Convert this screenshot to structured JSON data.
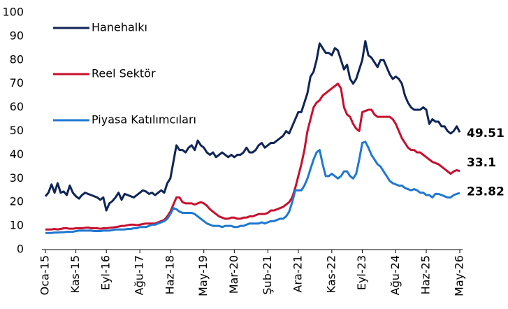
{
  "chart_data": {
    "type": "line",
    "categories": [
      "Oca-15",
      null,
      null,
      null,
      null,
      null,
      null,
      null,
      null,
      null,
      "Kas-15",
      null,
      null,
      null,
      null,
      null,
      null,
      null,
      null,
      null,
      "Eyl-16",
      null,
      null,
      null,
      null,
      null,
      null,
      null,
      null,
      null,
      null,
      "Ağu-17",
      null,
      null,
      null,
      null,
      null,
      null,
      null,
      null,
      null,
      "Haz-18",
      null,
      null,
      null,
      null,
      null,
      null,
      null,
      null,
      null,
      null,
      "May-19",
      null,
      null,
      null,
      null,
      null,
      null,
      null,
      null,
      null,
      "Mar-20",
      null,
      null,
      null,
      null,
      null,
      null,
      null,
      null,
      null,
      null,
      "Şub-21",
      null,
      null,
      null,
      null,
      null,
      null,
      null,
      null,
      null,
      "Ara-21",
      null,
      null,
      null,
      null,
      null,
      null,
      null,
      null,
      null,
      null,
      "Kas-22",
      null,
      null,
      null,
      null,
      null,
      null,
      null,
      null,
      null,
      "Eyl-23",
      null,
      null,
      null,
      null,
      null,
      null,
      null,
      null,
      null,
      null,
      "Ağu-24",
      null,
      null,
      null,
      null,
      null,
      null,
      null,
      null,
      null,
      "Haz-25",
      null,
      null,
      null,
      null,
      null,
      null,
      null,
      null,
      null,
      null,
      "May-26"
    ],
    "series": [
      {
        "name": "Hanehalkı",
        "color": "#0f2557",
        "values": [
          22.5,
          24,
          27.5,
          24,
          28,
          24,
          24.5,
          23,
          27,
          24,
          22.5,
          21.5,
          23,
          24,
          23.5,
          23,
          22.5,
          22,
          21,
          22,
          16.5,
          19.5,
          20.5,
          22,
          24,
          21,
          23.5,
          23,
          22.5,
          22,
          23,
          24,
          25,
          24.5,
          23.5,
          24,
          23,
          24,
          25,
          24,
          28,
          30,
          37,
          44,
          42,
          42,
          41,
          43,
          44,
          42,
          46,
          44,
          43,
          41,
          40,
          41,
          39,
          40,
          41,
          40,
          39,
          40,
          39,
          40,
          40,
          41,
          43,
          41,
          41,
          42,
          44,
          45,
          43,
          44,
          45,
          45,
          46,
          47,
          48,
          50,
          49,
          52,
          55,
          58,
          58,
          62,
          66,
          73,
          75,
          80,
          87,
          85,
          83,
          83,
          82,
          85,
          84,
          80,
          76,
          78,
          72,
          70,
          72,
          76,
          80,
          88,
          82,
          81,
          79,
          77,
          80,
          80,
          77,
          74,
          72,
          73,
          72,
          70,
          65,
          62,
          60,
          59,
          59,
          59,
          60,
          59,
          53,
          55,
          54,
          54,
          52,
          52,
          50,
          49,
          50,
          52,
          49.51
        ]
      },
      {
        "name": "Reel Sektör",
        "color": "#c8102e",
        "values": [
          8.5,
          8.5,
          8.5,
          8.7,
          8.5,
          8.7,
          9,
          9,
          8.8,
          8.8,
          9,
          9,
          9,
          9.2,
          9.3,
          9,
          9,
          9,
          8.8,
          9,
          9,
          9.2,
          9.3,
          9.5,
          9.7,
          10,
          10,
          10.3,
          10.5,
          10.5,
          10.3,
          10.5,
          10.8,
          11,
          11,
          11,
          11,
          11.5,
          12,
          12.5,
          14,
          16,
          19,
          22,
          22,
          20,
          19.5,
          19.5,
          19.5,
          19,
          19.5,
          20,
          19.5,
          18.5,
          17,
          16,
          15,
          14,
          13.5,
          13,
          13,
          13.5,
          13.5,
          13,
          13,
          13.5,
          13.5,
          14,
          14,
          14.5,
          15,
          15,
          15,
          15.5,
          16.5,
          16.5,
          17,
          17.5,
          18,
          19,
          20,
          22,
          26,
          31,
          36,
          42,
          50,
          55,
          60,
          62,
          63,
          65,
          66,
          67,
          68,
          69,
          70,
          68,
          60,
          57,
          56,
          53,
          51,
          50,
          58,
          58.5,
          59,
          59,
          57,
          56,
          56,
          56,
          56,
          56,
          55,
          53,
          50,
          47,
          45,
          43,
          42,
          42,
          41,
          41,
          40,
          39,
          38,
          37,
          36.5,
          36,
          35,
          34,
          33,
          32,
          33,
          33.5,
          33.1
        ]
      },
      {
        "name": "Piyasa Katılımcıları",
        "color": "#1f78d1",
        "values": [
          7,
          7,
          7,
          7.2,
          7.2,
          7.3,
          7.3,
          7.5,
          7.5,
          7.5,
          7.8,
          8,
          8,
          8,
          8,
          8,
          7.8,
          7.8,
          7.8,
          8,
          8,
          8,
          8.2,
          8.5,
          8.5,
          8.5,
          8.5,
          8.7,
          8.7,
          9,
          9,
          9.5,
          9.5,
          9.5,
          10,
          10.5,
          10.5,
          11,
          11.5,
          12,
          13,
          15,
          17.5,
          17,
          16,
          15.5,
          15.5,
          15.5,
          15.5,
          15,
          14,
          13,
          12,
          11,
          10.5,
          10,
          10,
          10,
          9.5,
          10,
          10,
          10,
          9.5,
          9.5,
          10,
          10,
          10.5,
          11,
          11,
          11,
          11,
          11.5,
          11,
          11.5,
          12,
          12,
          12.5,
          13,
          13,
          14,
          16,
          20,
          25,
          25,
          25,
          27,
          30,
          34,
          38,
          41,
          42,
          36,
          31,
          31,
          32,
          31,
          30,
          31,
          33,
          33,
          31,
          30,
          32,
          38,
          45,
          45.5,
          43,
          40,
          38,
          36,
          35,
          33,
          31,
          29,
          28,
          27.5,
          27,
          27,
          26,
          25.5,
          25,
          25.5,
          25,
          24,
          24,
          23,
          23,
          22,
          23.5,
          23.5,
          23,
          22.5,
          22,
          22,
          23,
          23.5,
          23.82
        ]
      }
    ],
    "ylim": [
      0,
      100
    ],
    "yticks": [
      0,
      10,
      20,
      30,
      40,
      50,
      60,
      70,
      80,
      90,
      100
    ],
    "grid": false,
    "legend": "upper left"
  }
}
